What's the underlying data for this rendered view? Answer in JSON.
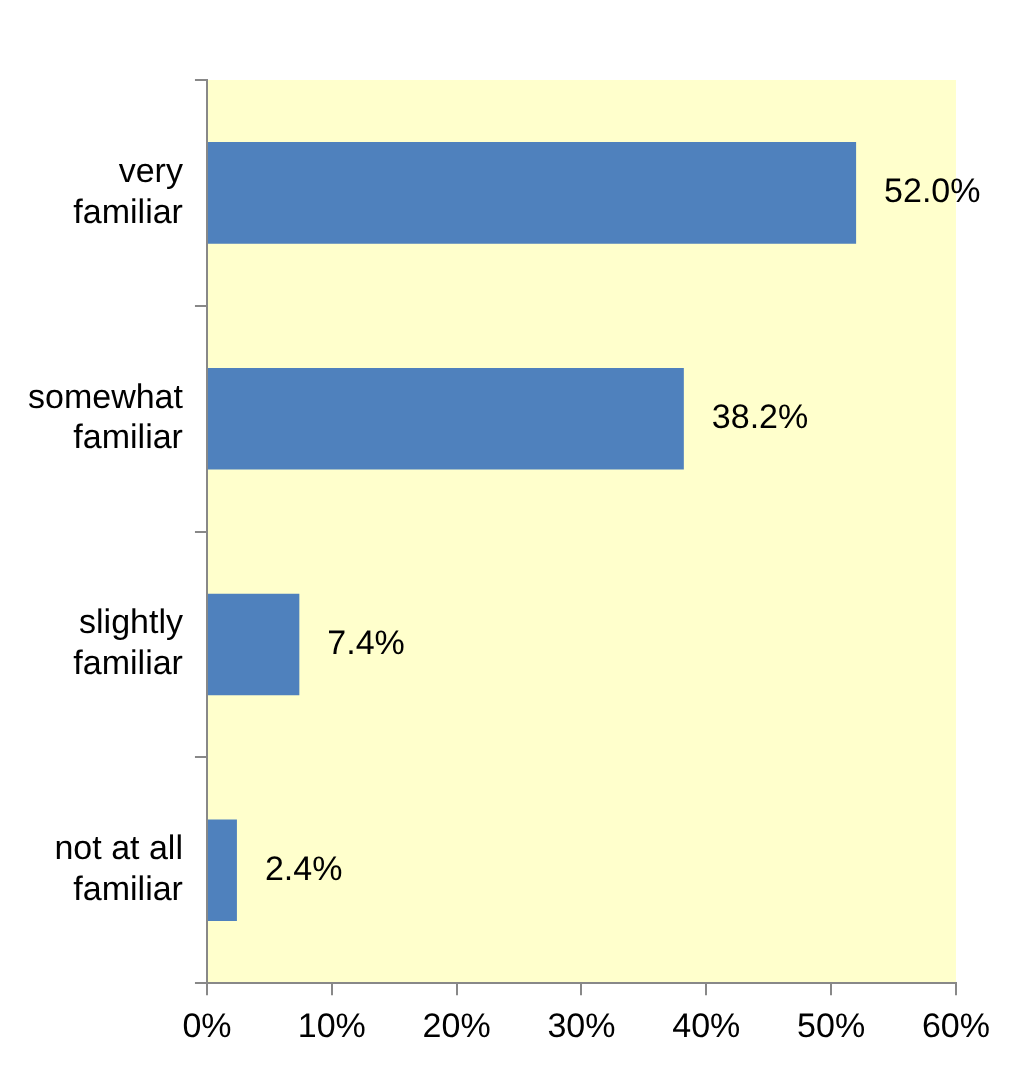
{
  "chart_data": {
    "type": "bar",
    "orientation": "horizontal",
    "categories": [
      "very familiar",
      "somewhat familiar",
      "slightly familiar",
      "not at all familiar"
    ],
    "values": [
      52.0,
      38.2,
      7.4,
      2.4
    ],
    "color": "#4f81bd",
    "value_labels": [
      "52.0%",
      "38.2%",
      "7.4%",
      "2.4%"
    ],
    "xlim": [
      0,
      60
    ],
    "xticks": [
      {
        "value": 0,
        "label": "0%"
      },
      {
        "value": 10,
        "label": "10%"
      },
      {
        "value": 20,
        "label": "20%"
      },
      {
        "value": 30,
        "label": "30%"
      },
      {
        "value": 40,
        "label": "40%"
      },
      {
        "value": 50,
        "label": "50%"
      },
      {
        "value": 60,
        "label": "60%"
      }
    ],
    "grid": false,
    "legend": false
  }
}
